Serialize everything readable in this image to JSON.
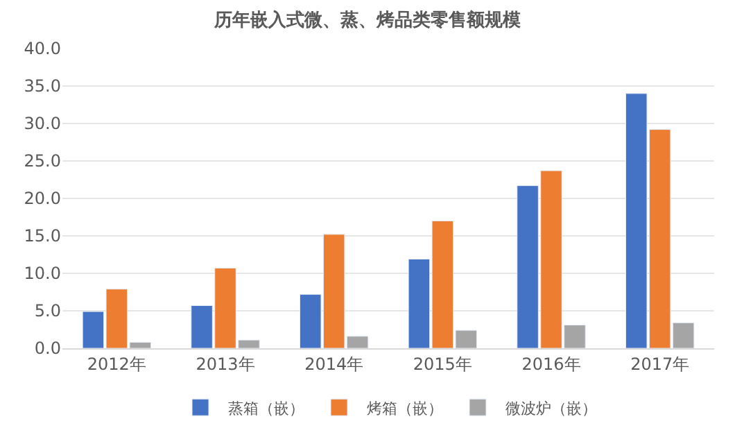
{
  "chart_data": {
    "type": "bar",
    "title": "历年嵌入式微、蒸、烤品类零售额规模",
    "categories": [
      "2012年",
      "2013年",
      "2014年",
      "2015年",
      "2016年",
      "2017年"
    ],
    "series": [
      {
        "name": "蒸箱（嵌）",
        "color": "#4472c4",
        "values": [
          4.9,
          5.7,
          7.2,
          11.9,
          21.7,
          34.0
        ]
      },
      {
        "name": "烤箱（嵌）",
        "color": "#ed7d31",
        "values": [
          7.9,
          10.7,
          15.2,
          17.0,
          23.7,
          29.2
        ]
      },
      {
        "name": "微波炉（嵌）",
        "color": "#a5a5a5",
        "values": [
          0.8,
          1.1,
          1.6,
          2.4,
          3.1,
          3.4
        ]
      }
    ],
    "ylim": [
      0,
      40
    ],
    "yticks": [
      {
        "value": 0,
        "label": "0.0"
      },
      {
        "value": 5,
        "label": "5.0"
      },
      {
        "value": 10,
        "label": "10.0"
      },
      {
        "value": 15,
        "label": "15.0"
      },
      {
        "value": 20,
        "label": "20.0"
      },
      {
        "value": 25,
        "label": "25.0"
      },
      {
        "value": 30,
        "label": "30.0"
      },
      {
        "value": 35,
        "label": "35.0"
      },
      {
        "value": 40,
        "label": "40.0"
      }
    ],
    "grid": "y",
    "legend": "bottom"
  }
}
